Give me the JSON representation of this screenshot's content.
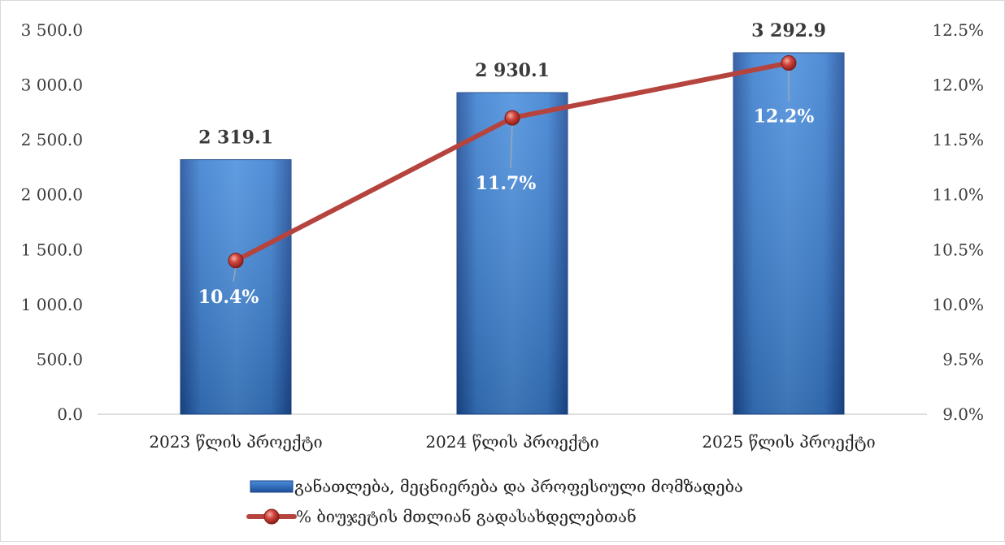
{
  "chart_data": {
    "type": "bar",
    "categories": [
      "2023 წლის პროექტი",
      "2024 წლის პროექტი",
      "2025 წლის პროექტი"
    ],
    "series": [
      {
        "name": "განათლება, მეცნიერება და პროფესიული მომზადება",
        "type": "bar",
        "axis": "left",
        "values": [
          2319.1,
          2930.1,
          3292.9
        ],
        "value_labels": [
          "2 319.1",
          "2 930.1",
          "3 292.9"
        ],
        "color": "#2E6FC0"
      },
      {
        "name": "% ბიუჯეტის მთლიან გადასახდელებთან",
        "type": "line",
        "axis": "right",
        "values": [
          10.4,
          11.7,
          12.2
        ],
        "value_labels": [
          "10.4%",
          "11.7%",
          "12.2%"
        ],
        "color": "#B5443F"
      }
    ],
    "y_left": {
      "min": 0,
      "max": 3500,
      "ticks": [
        0,
        500,
        1000,
        1500,
        2000,
        2500,
        3000,
        3500
      ],
      "tick_labels": [
        "0.0",
        "500.0",
        "1 000.0",
        "1 500.0",
        "2 000.0",
        "2 500.0",
        "3 000.0",
        "3 500.0"
      ]
    },
    "y_right": {
      "min": 9.0,
      "max": 12.5,
      "ticks": [
        9.0,
        9.5,
        10.0,
        10.5,
        11.0,
        11.5,
        12.0,
        12.5
      ],
      "tick_labels": [
        "9.0%",
        "9.5%",
        "10.0%",
        "10.5%",
        "11.0%",
        "11.5%",
        "12.0%",
        "12.5%"
      ]
    },
    "title": "",
    "xlabel": "",
    "ylabel": "",
    "grid": false,
    "legend_position": "bottom"
  }
}
